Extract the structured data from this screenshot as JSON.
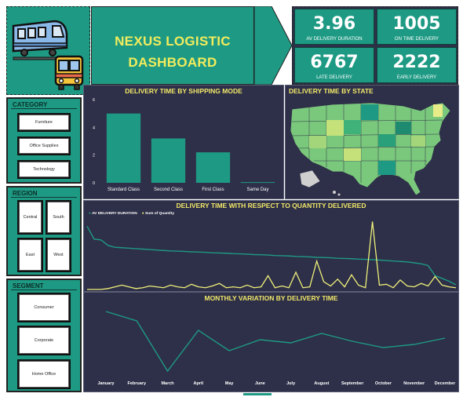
{
  "header": {
    "title_line1": "NEXUS LOGISTIC",
    "title_line2": "DASHBOARD"
  },
  "kpis": [
    {
      "value": "3.96",
      "label": "AV DELIVERY DURATION"
    },
    {
      "value": "1005",
      "label": "ON TIME DELIVERY"
    },
    {
      "value": "6767",
      "label": "LATE DELIVERY"
    },
    {
      "value": "2222",
      "label": "EARLY DELIVERY"
    }
  ],
  "slicers": {
    "category": {
      "title": "CATEGORY",
      "items": [
        "Furniture",
        "Office Supplies",
        "Technology"
      ]
    },
    "region": {
      "title": "REGION",
      "items": [
        "Central",
        "South",
        "East",
        "West"
      ]
    },
    "segment": {
      "title": "SEGMENT",
      "items": [
        "Consumer",
        "Corporate",
        "Home Office"
      ]
    }
  },
  "panels": {
    "shipping_title": "DELIVERY TIME BY SHIPPING MODE",
    "state_title": "DELIVERY TIME BY STATE",
    "quantity_title": "DELIVERY TIME WITH RESPECT TO QUANTITY DELIVERED",
    "monthly_title": "MONTHLY VARIATION BY DELIVERY TIME"
  },
  "colors": {
    "teal": "#1e9a84",
    "navy": "#2e2f48",
    "yellow": "#f2ec5c",
    "line_yellow": "#eef07a"
  },
  "chart_data": [
    {
      "type": "bar",
      "title": "DELIVERY TIME BY SHIPPING MODE",
      "categories": [
        "Standard Class",
        "Second Class",
        "First Class",
        "Same Day"
      ],
      "values": [
        5.0,
        3.2,
        2.2,
        0.05
      ],
      "yticks": [
        "0",
        "2",
        "4",
        "6"
      ],
      "ylim": [
        0,
        6
      ]
    },
    {
      "type": "line",
      "title": "DELIVERY TIME WITH RESPECT TO QUANTITY DELIVERED",
      "series": [
        {
          "name": "AV DELIVERY DURATION",
          "values": [
            7.0,
            5.6,
            5.5,
            4.9,
            4.7,
            4.65,
            4.6,
            4.55,
            4.5,
            4.45,
            4.4,
            4.35,
            4.3,
            4.28,
            4.25,
            4.2,
            4.18,
            4.15,
            4.1,
            4.08,
            4.05,
            4.0,
            3.98,
            3.95,
            3.9,
            3.88,
            3.85,
            3.8,
            3.78,
            3.75,
            3.7,
            3.68,
            3.65,
            3.6,
            3.58,
            3.55,
            3.5,
            3.48,
            3.45,
            3.4,
            3.38,
            3.35,
            3.3,
            3.25,
            3.2,
            3.15,
            3.1,
            3.0,
            2.9,
            2.7,
            1.6,
            1.3,
            1.0,
            0.6
          ]
        },
        {
          "name": "Sum of Quantity",
          "values": [
            0.1,
            0.1,
            0.1,
            0.2,
            0.4,
            0.6,
            0.4,
            0.2,
            0.3,
            0.5,
            0.4,
            0.3,
            0.6,
            0.4,
            0.3,
            0.7,
            0.4,
            0.3,
            0.5,
            0.8,
            0.3,
            0.4,
            0.3,
            0.6,
            0.3,
            0.4,
            1.7,
            0.3,
            0.5,
            0.3,
            2.1,
            0.3,
            0.4,
            3.4,
            1.0,
            0.5,
            1.3,
            0.4,
            1.8,
            0.6,
            0.3,
            8.0,
            0.6,
            0.7,
            0.3,
            1.2,
            0.5,
            0.4,
            0.8,
            0.5,
            1.6,
            0.6,
            0.4,
            0.3
          ]
        }
      ]
    },
    {
      "type": "line",
      "title": "MONTHLY VARIATION BY DELIVERY TIME",
      "categories": [
        "January",
        "February",
        "March",
        "April",
        "May",
        "June",
        "July",
        "August",
        "September",
        "October",
        "November",
        "December"
      ],
      "values": [
        4.8,
        4.2,
        1.0,
        3.6,
        2.3,
        3.0,
        2.8,
        3.4,
        2.9,
        2.5,
        2.7,
        3.1
      ]
    }
  ]
}
